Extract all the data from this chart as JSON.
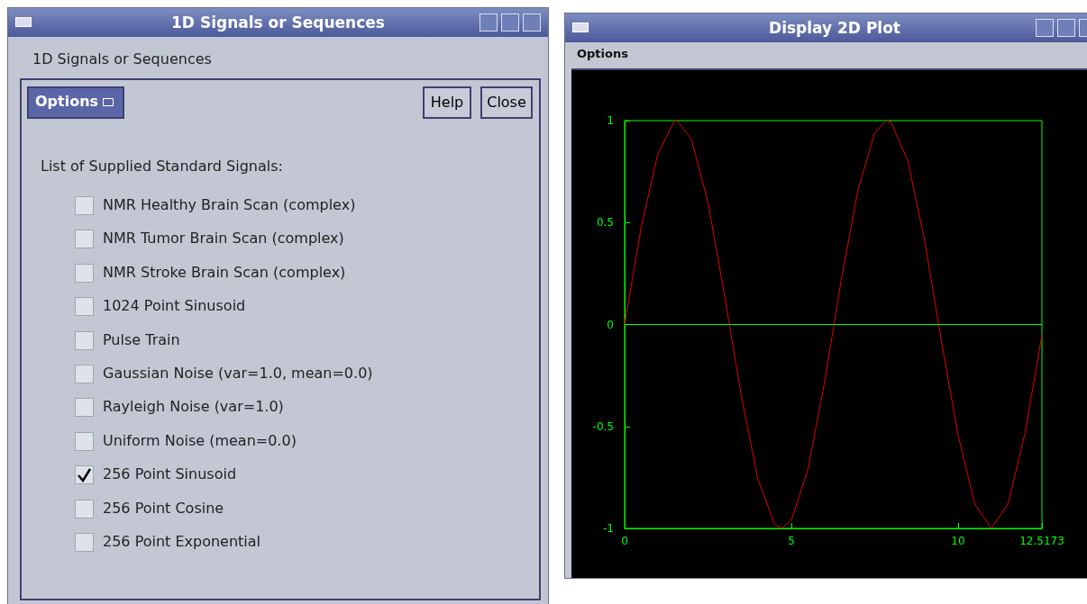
{
  "chart_data": [
    {
      "type": "other",
      "title": "1D Signals or Sequences",
      "annotations": [
        "1D Signals or Sequences",
        "Options",
        "Help",
        "Close",
        "List of Supplied Standard Signals:",
        "NMR Healthy Brain Scan (complex)",
        "NMR Tumor Brain Scan (complex)",
        "NMR Stroke Brain Scan (complex)",
        "1024 Point Sinusoid",
        "Pulse Train",
        "Gaussian Noise (var=1.0, mean=0.0)",
        "Rayleigh Noise (var=1.0)",
        "Uniform Noise (mean=0.0)",
        "256 Point Sinusoid",
        "256 Point Cosine",
        "256 Point Exponential"
      ]
    },
    {
      "type": "line",
      "title": "Display 2D Plot",
      "annotations": [
        "Options"
      ],
      "x": [
        0,
        0.5,
        1,
        1.5,
        1.57,
        2,
        2.5,
        3,
        3.5,
        4,
        4.5,
        4.71,
        5,
        5.5,
        6,
        6.5,
        7,
        7.5,
        7.85,
        8,
        8.5,
        9,
        9.5,
        10,
        10.5,
        11,
        11.5,
        12,
        12.5,
        12.5173
      ],
      "series": [
        {
          "color": "#e00000",
          "values": [
            0,
            0.48,
            0.84,
            1.0,
            1.0,
            0.91,
            0.6,
            0.14,
            -0.35,
            -0.76,
            -0.98,
            -1.0,
            -0.96,
            -0.71,
            -0.28,
            0.22,
            0.66,
            0.94,
            1.0,
            0.99,
            0.8,
            0.41,
            -0.08,
            -0.54,
            -0.88,
            -1.0,
            -0.88,
            -0.54,
            -0.07,
            -0.05
          ]
        }
      ],
      "xlim": [
        0,
        12.5173
      ],
      "xticks": [
        0,
        5,
        10,
        12.5173
      ],
      "ylim": [
        -1,
        1
      ],
      "yticks": [
        -1,
        -0.5,
        0,
        0.5,
        1
      ],
      "ref_lines": [
        {
          "axis": "y",
          "value": 0,
          "color": "#00ff00"
        }
      ],
      "grid": false
    }
  ]
}
